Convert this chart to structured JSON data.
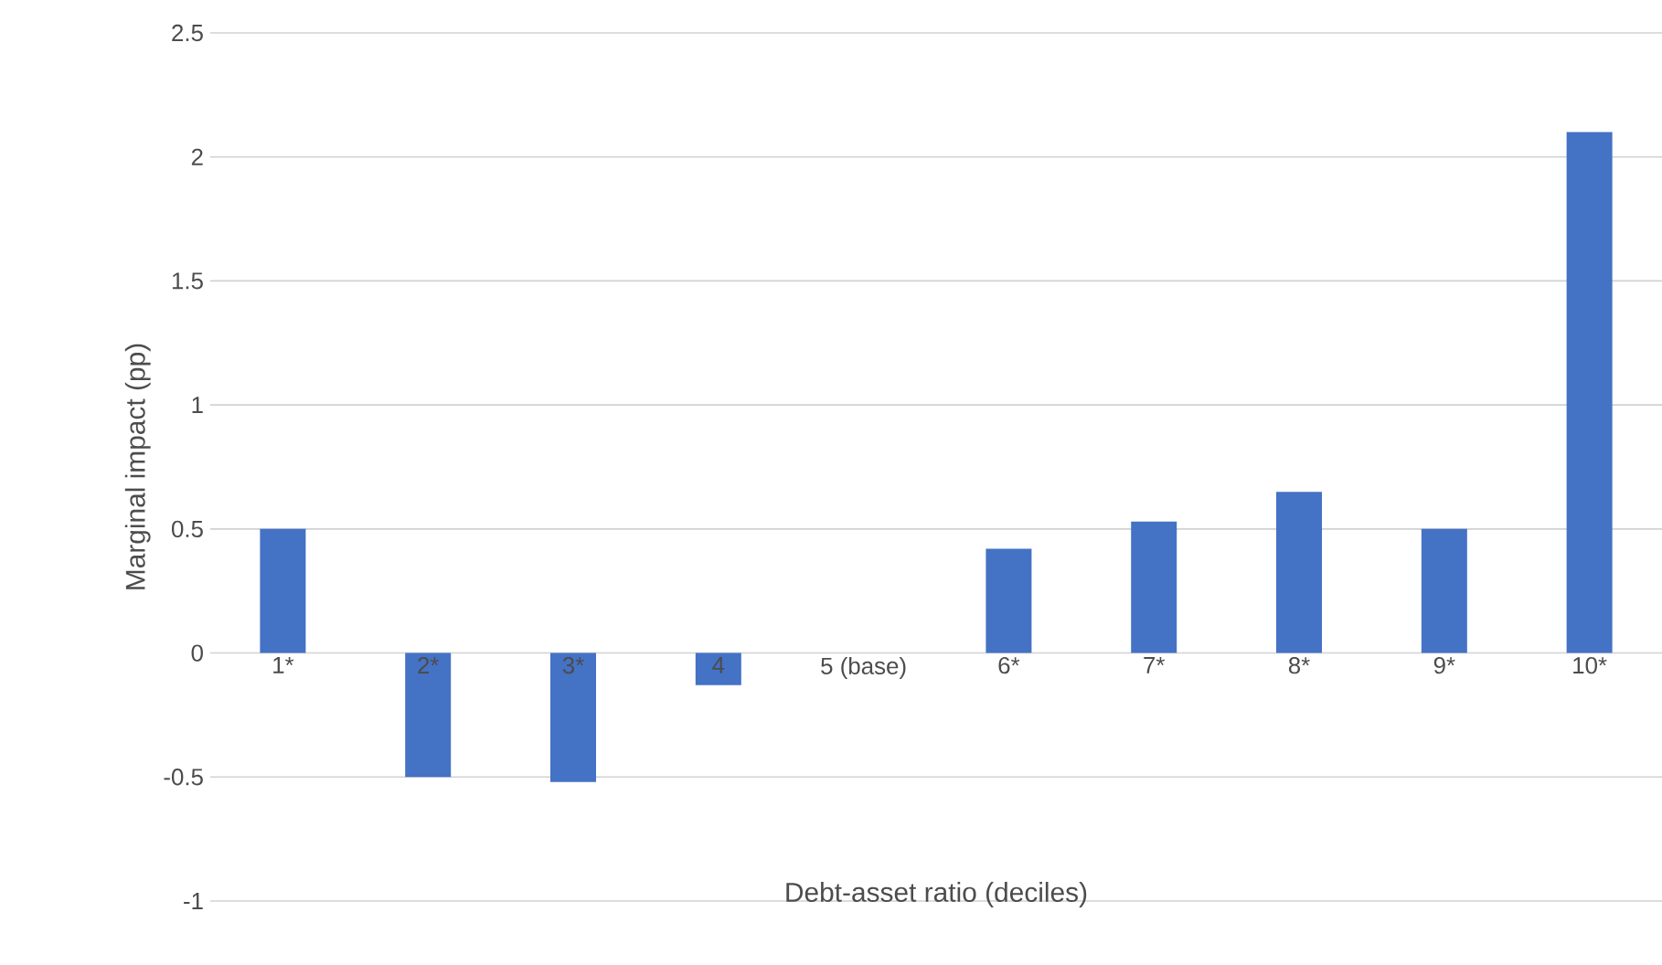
{
  "chart_data": {
    "type": "bar",
    "xlabel": "Debt-asset ratio (deciles)",
    "ylabel": "Marginal impact (pp)",
    "categories": [
      "1*",
      "2*",
      "3*",
      "4",
      "5 (base)",
      "6*",
      "7*",
      "8*",
      "9*",
      "10*"
    ],
    "values": [
      0.5,
      -0.5,
      -0.52,
      -0.13,
      0,
      0.42,
      0.53,
      0.65,
      0.5,
      2.1
    ],
    "color": "#4472c4",
    "ylim": [
      -1,
      2.5
    ],
    "yticks": [
      -1,
      -0.5,
      0,
      0.5,
      1,
      1.5,
      2,
      2.5
    ],
    "grid": "y"
  }
}
